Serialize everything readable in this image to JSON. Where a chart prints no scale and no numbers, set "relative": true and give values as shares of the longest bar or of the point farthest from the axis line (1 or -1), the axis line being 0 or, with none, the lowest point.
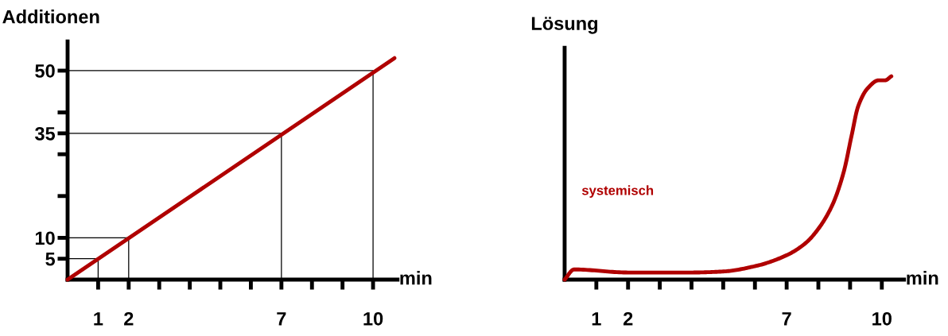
{
  "chart_data": [
    {
      "type": "line",
      "ylabel": "Additionen",
      "xlabel": "min",
      "xlim": [
        0,
        10.8
      ],
      "ylim": [
        0,
        57
      ],
      "xticks": [
        {
          "value": 1,
          "label": "1"
        },
        {
          "value": 2,
          "label": "2"
        },
        {
          "value": 3,
          "label": null
        },
        {
          "value": 4,
          "label": null
        },
        {
          "value": 5,
          "label": null
        },
        {
          "value": 6,
          "label": null
        },
        {
          "value": 7,
          "label": "7"
        },
        {
          "value": 8,
          "label": null
        },
        {
          "value": 9,
          "label": null
        },
        {
          "value": 10,
          "label": "10"
        }
      ],
      "yticks": [
        5,
        10,
        {
          "value": 20,
          "label": null
        },
        {
          "value": 30,
          "label": null
        },
        35,
        {
          "value": 40,
          "label": null
        },
        50
      ],
      "grid": false,
      "legend": false,
      "marker": "none",
      "line_style": "solid",
      "series": [
        {
          "color": "#b00000",
          "x": [
            0,
            10.7
          ],
          "values": [
            0,
            53
          ]
        },
        {
          "color": "#000000",
          "x": [
            0,
            1,
            1
          ],
          "values": [
            5,
            5,
            0
          ]
        },
        {
          "color": "#000000",
          "x": [
            0,
            2,
            2
          ],
          "values": [
            10,
            10,
            0
          ]
        },
        {
          "color": "#000000",
          "x": [
            0,
            7,
            7
          ],
          "values": [
            35,
            35,
            0
          ]
        },
        {
          "color": "#000000",
          "x": [
            0,
            10,
            10
          ],
          "values": [
            50,
            50,
            0
          ]
        }
      ]
    },
    {
      "type": "line",
      "ylabel": "Lösung",
      "xlabel": "min",
      "xlim": [
        0,
        10.7
      ],
      "relative": true,
      "xticks": [
        {
          "value": 1,
          "label": "1"
        },
        {
          "value": 2,
          "label": "2"
        },
        {
          "value": 3,
          "label": null
        },
        {
          "value": 4,
          "label": null
        },
        {
          "value": 5,
          "label": null
        },
        {
          "value": 6,
          "label": null
        },
        {
          "value": 7,
          "label": "7"
        },
        {
          "value": 8,
          "label": null
        },
        {
          "value": 9,
          "label": null
        },
        {
          "value": 10,
          "label": "10"
        }
      ],
      "grid": false,
      "legend": false,
      "marker": "none",
      "line_style": "solid",
      "annotations": [
        "systemisch"
      ],
      "series": [
        {
          "color": "#b00000",
          "x": [
            0,
            0.3,
            2,
            4,
            5,
            6,
            7,
            7.6,
            8,
            8.45,
            8.8,
            9.05,
            9.25,
            9.55,
            9.9,
            10.1,
            10.3
          ],
          "values": [
            0,
            0.05,
            0.035,
            0.035,
            0.04,
            0.066,
            0.12,
            0.18,
            0.25,
            0.37,
            0.53,
            0.71,
            0.85,
            0.94,
            0.98,
            0.98,
            1.0
          ]
        }
      ]
    }
  ]
}
